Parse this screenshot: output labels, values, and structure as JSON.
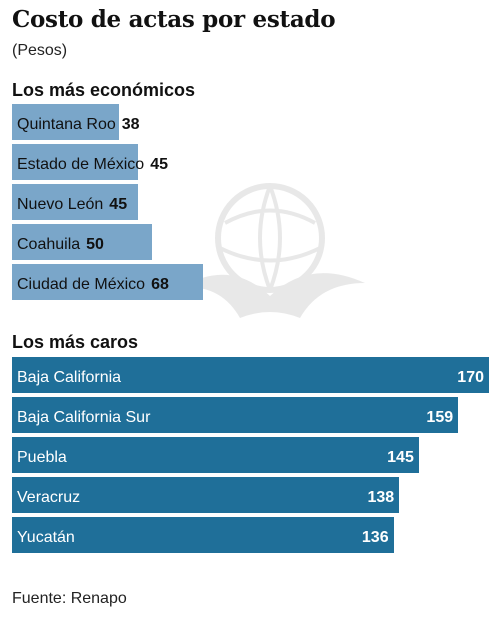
{
  "title": "Costo de actas por estado",
  "subtitle": "(Pesos)",
  "source": "Fuente: Renapo",
  "colors": {
    "cheap_bar": "#7aa6c9",
    "expensive_bar": "#1f6f99"
  },
  "chart_data": [
    {
      "type": "bar",
      "orientation": "horizontal",
      "title": "Los más económicos",
      "categories": [
        "Quintana Roo",
        "Estado de México",
        "Nuevo León",
        "Coahuila",
        "Ciudad de México"
      ],
      "values": [
        38,
        45,
        45,
        50,
        68
      ]
    },
    {
      "type": "bar",
      "orientation": "horizontal",
      "title": "Los más caros",
      "categories": [
        "Baja California",
        "Baja California Sur",
        "Puebla",
        "Veracruz",
        "Yucatán"
      ],
      "values": [
        170,
        159,
        145,
        138,
        136
      ]
    }
  ]
}
